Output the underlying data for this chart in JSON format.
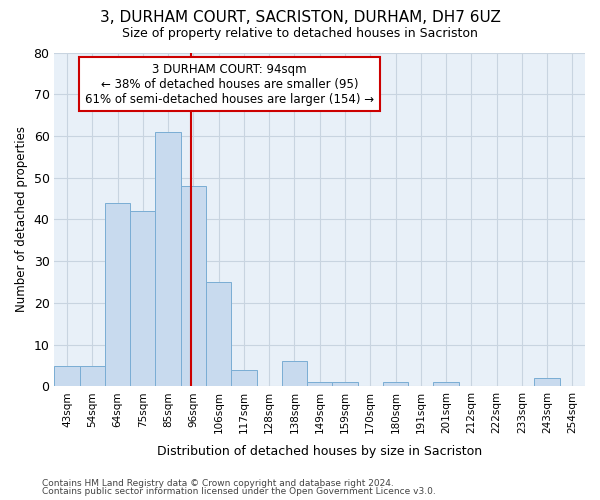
{
  "title": "3, DURHAM COURT, SACRISTON, DURHAM, DH7 6UZ",
  "subtitle": "Size of property relative to detached houses in Sacriston",
  "xlabel": "Distribution of detached houses by size in Sacriston",
  "ylabel": "Number of detached properties",
  "categories": [
    "43sqm",
    "54sqm",
    "64sqm",
    "75sqm",
    "85sqm",
    "96sqm",
    "106sqm",
    "117sqm",
    "128sqm",
    "138sqm",
    "149sqm",
    "159sqm",
    "170sqm",
    "180sqm",
    "191sqm",
    "201sqm",
    "212sqm",
    "222sqm",
    "233sqm",
    "243sqm",
    "254sqm"
  ],
  "values": [
    5,
    5,
    44,
    42,
    61,
    48,
    25,
    4,
    0,
    6,
    1,
    1,
    0,
    1,
    0,
    1,
    0,
    0,
    0,
    2,
    0
  ],
  "bar_color": "#c8daee",
  "bar_edge_color": "#7aadd4",
  "annotation_text": "3 DURHAM COURT: 94sqm\n← 38% of detached houses are smaller (95)\n61% of semi-detached houses are larger (154) →",
  "annotation_box_color": "#ffffff",
  "annotation_box_edge": "#cc0000",
  "vline_color": "#cc0000",
  "ylim": [
    0,
    80
  ],
  "yticks": [
    0,
    10,
    20,
    30,
    40,
    50,
    60,
    70,
    80
  ],
  "grid_color": "#c8d4e0",
  "bg_color": "#ffffff",
  "plot_bg_color": "#e8f0f8",
  "footnote1": "Contains HM Land Registry data © Crown copyright and database right 2024.",
  "footnote2": "Contains public sector information licensed under the Open Government Licence v3.0.",
  "vline_index": 4.9
}
